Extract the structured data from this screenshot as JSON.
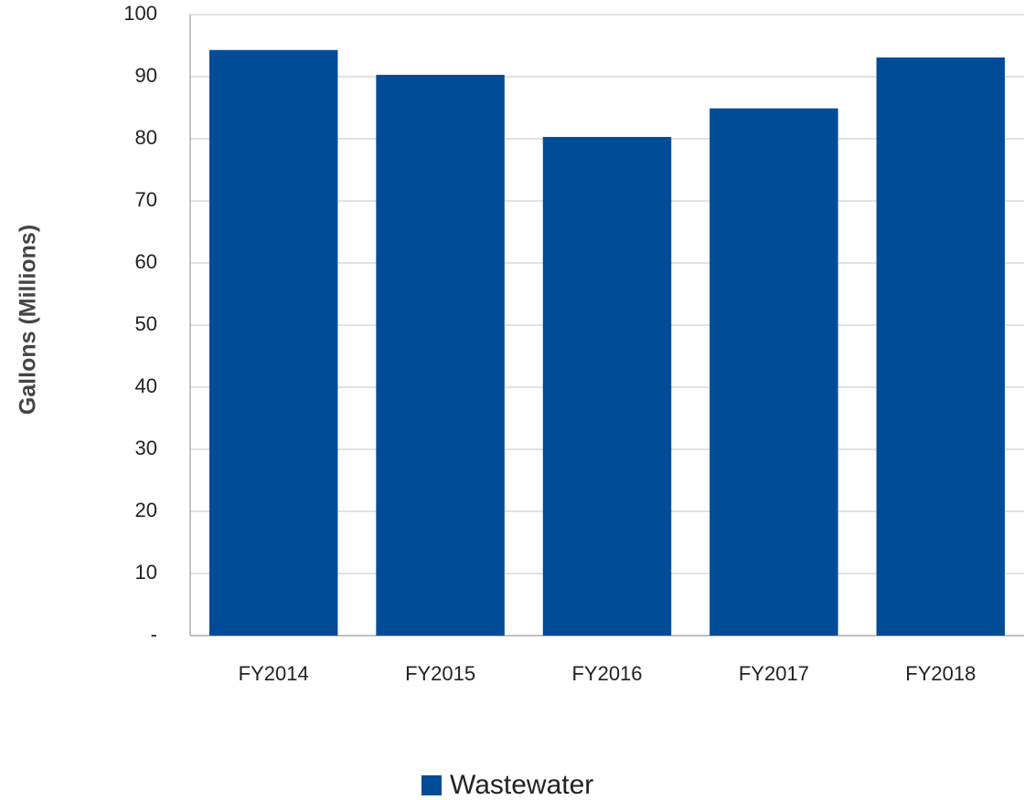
{
  "chart_data": {
    "type": "bar",
    "y_label": "Gallons (Millions)",
    "categories": [
      "FY2014",
      "FY2015",
      "FY2016",
      "FY2017",
      "FY2018"
    ],
    "series": [
      {
        "name": "Wastewater",
        "color": "#004c97",
        "values": [
          94.3,
          90.3,
          80.3,
          84.9,
          93.1
        ]
      }
    ],
    "ylim": [
      0,
      100
    ],
    "yticks": [
      {
        "value": 0,
        "label": "-"
      },
      10,
      20,
      30,
      40,
      50,
      60,
      70,
      80,
      90,
      100
    ],
    "grid": true,
    "legend": "bottom"
  }
}
